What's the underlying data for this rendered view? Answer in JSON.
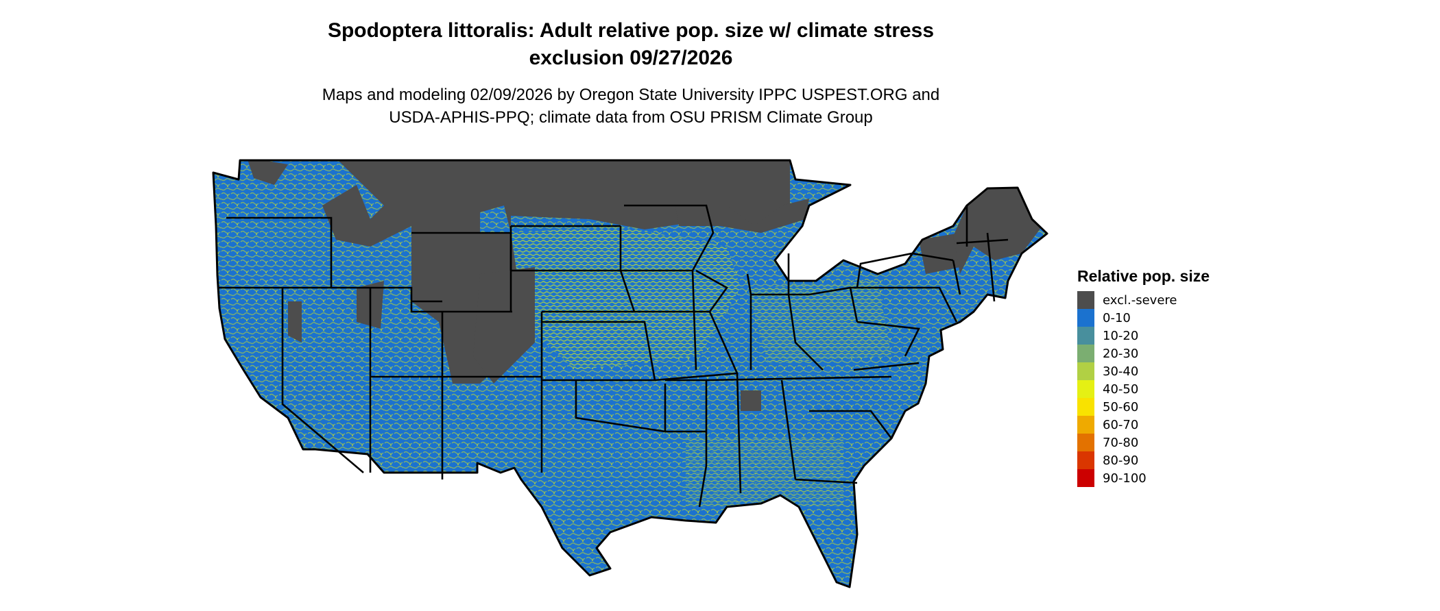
{
  "title": {
    "line1": "Spodoptera littoralis: Adult relative pop. size w/ climate stress",
    "line2": "exclusion 09/27/2026"
  },
  "subtitle": {
    "line1": "Maps and modeling 02/09/2026 by Oregon State University IPPC USPEST.ORG and",
    "line2": "USDA-APHIS-PPQ; climate data from OSU PRISM Climate Group"
  },
  "map": {
    "region": "Contiguous United States",
    "dominant_class": "0-10",
    "border_color": "#000000"
  },
  "legend": {
    "title": "Relative pop. size",
    "items": [
      {
        "label": "excl.-severe",
        "color": "#4d4d4d"
      },
      {
        "label": "0-10",
        "color": "#1b72cf"
      },
      {
        "label": "10-20",
        "color": "#488f9d"
      },
      {
        "label": "20-30",
        "color": "#7bae71"
      },
      {
        "label": "30-40",
        "color": "#b1d044"
      },
      {
        "label": "40-50",
        "color": "#e5f014"
      },
      {
        "label": "50-60",
        "color": "#f9e200"
      },
      {
        "label": "60-70",
        "color": "#efaa00"
      },
      {
        "label": "70-80",
        "color": "#e37200"
      },
      {
        "label": "80-90",
        "color": "#da3600"
      },
      {
        "label": "90-100",
        "color": "#cc0000"
      }
    ]
  }
}
